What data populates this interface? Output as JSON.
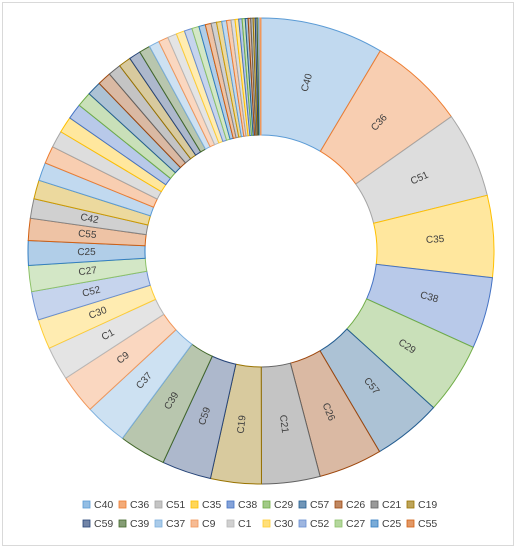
{
  "chart_data": {
    "type": "pie",
    "variant": "doughnut",
    "legend_position": "bottom",
    "slice_order": "descending clockwise from top",
    "labeled_slices": [
      {
        "label": "C40",
        "value": 9.5,
        "color": "#5b9bd5"
      },
      {
        "label": "C36",
        "value": 7.4,
        "color": "#ed7d31"
      },
      {
        "label": "C51",
        "value": 6.6,
        "color": "#a5a5a5"
      },
      {
        "label": "C35",
        "value": 6.3,
        "color": "#ffc000"
      },
      {
        "label": "C38",
        "value": 5.5,
        "color": "#4472c4"
      },
      {
        "label": "C29",
        "value": 5.5,
        "color": "#70ad47"
      },
      {
        "label": "C57",
        "value": 5.3,
        "color": "#255e91"
      },
      {
        "label": "C26",
        "value": 4.9,
        "color": "#9e480e"
      },
      {
        "label": "C21",
        "value": 4.5,
        "color": "#636363"
      },
      {
        "label": "C19",
        "value": 3.9,
        "color": "#997300"
      },
      {
        "label": "C59",
        "value": 3.8,
        "color": "#264478"
      },
      {
        "label": "C39",
        "value": 3.6,
        "color": "#43682b"
      },
      {
        "label": "C37",
        "value": 3.3,
        "color": "#7cafdd"
      },
      {
        "label": "C9",
        "value": 3.0,
        "color": "#f1975a"
      },
      {
        "label": "C1",
        "value": 2.6,
        "color": "#b7b7b7"
      },
      {
        "label": "C30",
        "value": 2.3,
        "color": "#ffcd33"
      },
      {
        "label": "C52",
        "value": 2.2,
        "color": "#698ed0"
      },
      {
        "label": "C27",
        "value": 2.0,
        "color": "#8cc168"
      },
      {
        "label": "C25",
        "value": 1.9,
        "color": "#327dc2"
      },
      {
        "label": "C55",
        "value": 1.7,
        "color": "#d26012"
      },
      {
        "label": "C42",
        "value": 1.5,
        "color": "#848484"
      }
    ],
    "unlabeled_slice_values": [
      1.45,
      1.4,
      1.35,
      1.3,
      1.25,
      1.2,
      1.15,
      1.1,
      1.05,
      1.0,
      0.95,
      0.9,
      0.85,
      0.8,
      0.75,
      0.7,
      0.65,
      0.6,
      0.55,
      0.5,
      0.45,
      0.42,
      0.4,
      0.37,
      0.34,
      0.31,
      0.28,
      0.26,
      0.24,
      0.22,
      0.2,
      0.18,
      0.16,
      0.14,
      0.12,
      0.1,
      0.08
    ],
    "palette": [
      "#5b9bd5",
      "#ed7d31",
      "#a5a5a5",
      "#ffc000",
      "#4472c4",
      "#70ad47",
      "#255e91",
      "#9e480e",
      "#636363",
      "#997300",
      "#264478",
      "#43682b",
      "#7cafdd",
      "#f1975a",
      "#b7b7b7",
      "#ffcd33",
      "#698ed0",
      "#8cc168",
      "#327dc2",
      "#d26012",
      "#848484",
      "#cc9a00"
    ],
    "legend": {
      "row1": [
        "C40",
        "C36",
        "C51",
        "C35",
        "C38",
        "C29",
        "C57",
        "C26",
        "C21",
        "C19"
      ],
      "row2": [
        "C59",
        "C39",
        "C37",
        "C9",
        "C1",
        "C30",
        "C52",
        "C27",
        "C25",
        "C55"
      ]
    }
  }
}
